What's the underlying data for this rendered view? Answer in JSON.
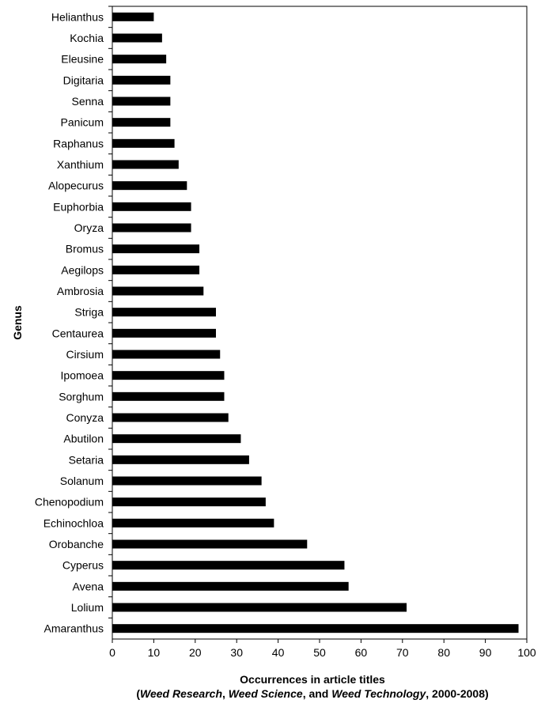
{
  "chart_data": {
    "type": "bar",
    "orientation": "horizontal",
    "categories": [
      "Helianthus",
      "Kochia",
      "Eleusine",
      "Digitaria",
      "Senna",
      "Panicum",
      "Raphanus",
      "Xanthium",
      "Alopecurus",
      "Euphorbia",
      "Oryza",
      "Bromus",
      "Aegilops",
      "Ambrosia",
      "Striga",
      "Centaurea",
      "Cirsium",
      "Ipomoea",
      "Sorghum",
      "Conyza",
      "Abutilon",
      "Setaria",
      "Solanum",
      "Chenopodium",
      "Echinochloa",
      "Orobanche",
      "Cyperus",
      "Avena",
      "Lolium",
      "Amaranthus"
    ],
    "values": [
      10,
      12,
      13,
      14,
      14,
      14,
      15,
      16,
      18,
      19,
      19,
      21,
      21,
      22,
      25,
      25,
      26,
      27,
      27,
      28,
      31,
      33,
      36,
      37,
      39,
      47,
      56,
      57,
      71,
      98
    ],
    "xlim": [
      0,
      100
    ],
    "xticks": [
      0,
      10,
      20,
      30,
      40,
      50,
      60,
      70,
      80,
      90,
      100
    ],
    "ylabel": "Genus",
    "xlabel_line1": "Occurrences in article titles",
    "xlabel_line2": [
      {
        "text": "(",
        "italic": false
      },
      {
        "text": "Weed Research",
        "italic": true
      },
      {
        "text": ", ",
        "italic": false
      },
      {
        "text": "Weed Science",
        "italic": true
      },
      {
        "text": ", and ",
        "italic": false
      },
      {
        "text": "Weed Technology",
        "italic": true
      },
      {
        "text": ", 2000-2008)",
        "italic": false
      }
    ],
    "bar_color": "#000000",
    "grid": false,
    "legend": "none"
  }
}
